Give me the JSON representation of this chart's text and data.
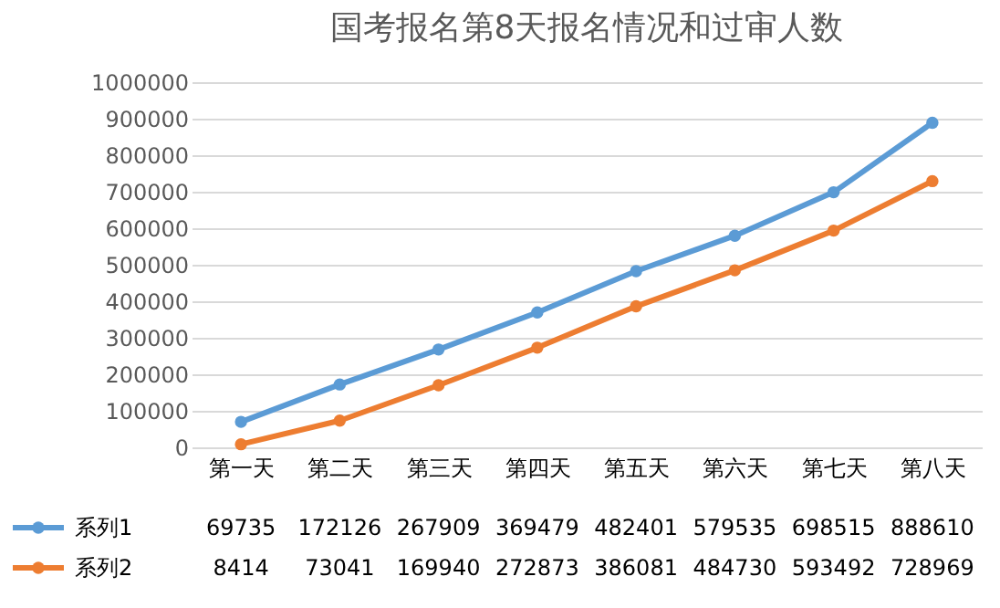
{
  "chart_data": {
    "type": "line",
    "title": "国考报名第8天报名情况和过审人数",
    "categories": [
      "第一天",
      "第二天",
      "第三天",
      "第四天",
      "第五天",
      "第六天",
      "第七天",
      "第八天"
    ],
    "series": [
      {
        "name": "系列1",
        "color": "#5b9bd5",
        "values": [
          69735,
          172126,
          267909,
          369479,
          482401,
          579535,
          698515,
          888610
        ]
      },
      {
        "name": "系列2",
        "color": "#ed7d31",
        "values": [
          8414,
          73041,
          169940,
          272873,
          386081,
          484730,
          593492,
          728969
        ]
      }
    ],
    "ylim": [
      0,
      1000000
    ],
    "yticks": [
      0,
      100000,
      200000,
      300000,
      400000,
      500000,
      600000,
      700000,
      800000,
      900000,
      1000000
    ],
    "grid": "y",
    "legend": "bottom",
    "marker": "circle",
    "line_style": "solid",
    "data_labels": true
  }
}
